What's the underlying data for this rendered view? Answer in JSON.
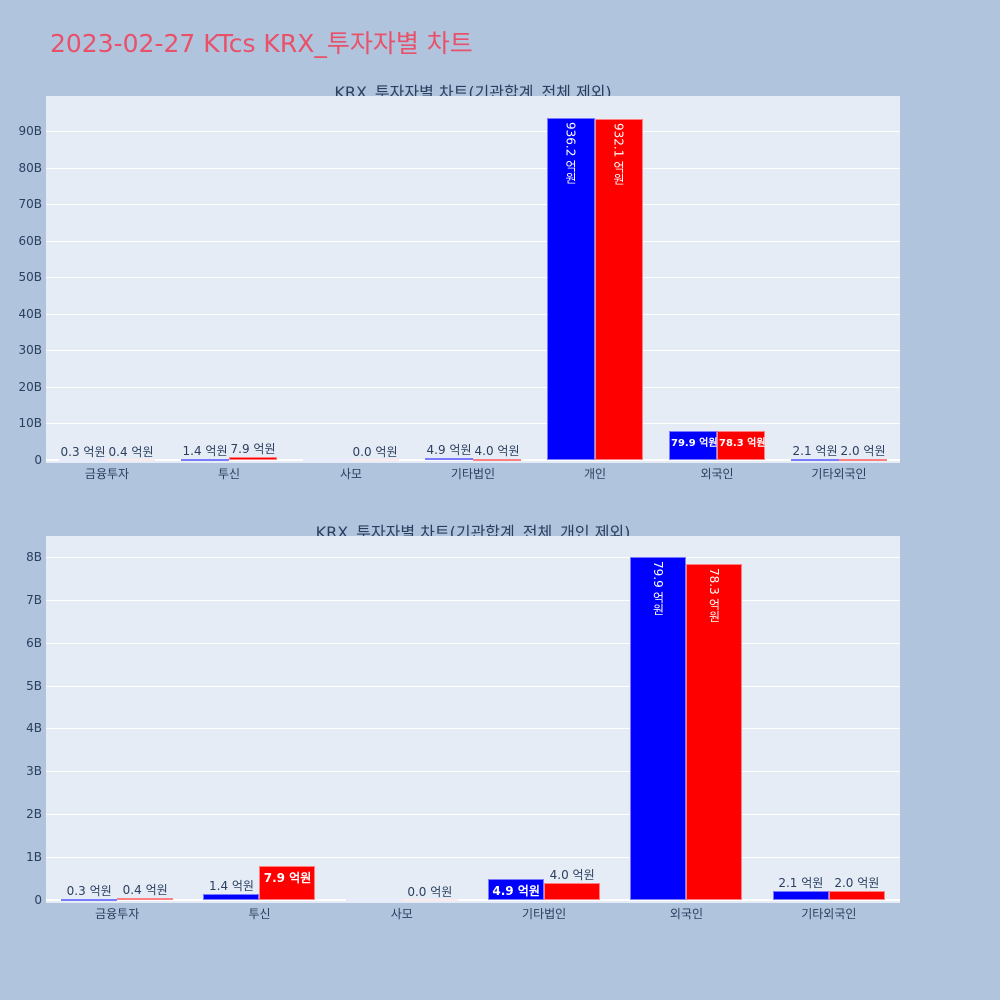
{
  "title": "2023-02-27 KTcs KRX_투자자별 차트",
  "colors": {
    "buy": "#0000ff",
    "sell": "#ff0000",
    "title": "#e8516a",
    "background": "#b0c4de",
    "plot_bg": "#e5ecf6"
  },
  "chart_data": [
    {
      "type": "bar",
      "title": "KRX_투자자별 차트(기관합계_전체 제외)",
      "xlabel": "",
      "ylabel": "",
      "ylim": [
        0,
        99
      ],
      "yticks": [
        "0",
        "10B",
        "20B",
        "30B",
        "40B",
        "50B",
        "60B",
        "70B",
        "80B",
        "90B"
      ],
      "grid": true,
      "legend": "none",
      "categories": [
        "금융투자",
        "투신",
        "사모",
        "기타법인",
        "개인",
        "외국인",
        "기타외국인"
      ],
      "series": [
        {
          "name": "buy",
          "color": "#0000ff",
          "values_억원": [
            0.3,
            1.4,
            0.0,
            4.9,
            936.2,
            79.9,
            2.1
          ],
          "labels": [
            "0.3 억원",
            "1.4 억원",
            "",
            "4.9 억원",
            "936.2 억원",
            "79.9 억원",
            "2.1 억원"
          ]
        },
        {
          "name": "sell",
          "color": "#ff0000",
          "values_억원": [
            0.4,
            7.9,
            0.0,
            4.0,
            932.1,
            78.3,
            2.0
          ],
          "labels": [
            "0.4 억원",
            "7.9 억원",
            "0.0 억원",
            "4.0 억원",
            "932.1 억원",
            "78.3 억원",
            "2.0 억원"
          ]
        }
      ]
    },
    {
      "type": "bar",
      "title": "KRX_투자자별 차트(기관합계_전체_개인 제외)",
      "xlabel": "",
      "ylabel": "",
      "ylim": [
        0,
        8.4
      ],
      "yticks": [
        "0",
        "1B",
        "2B",
        "3B",
        "4B",
        "5B",
        "6B",
        "7B",
        "8B"
      ],
      "grid": true,
      "legend": "none",
      "categories": [
        "금융투자",
        "투신",
        "사모",
        "기타법인",
        "외국인",
        "기타외국인"
      ],
      "series": [
        {
          "name": "buy",
          "color": "#0000ff",
          "values_억원": [
            0.3,
            1.4,
            0.0,
            4.9,
            79.9,
            2.1
          ],
          "labels": [
            "0.3 억원",
            "1.4 억원",
            "",
            "4.9 억원",
            "79.9 억원",
            "2.1 억원"
          ]
        },
        {
          "name": "sell",
          "color": "#ff0000",
          "values_억원": [
            0.4,
            7.9,
            0.0,
            4.0,
            78.3,
            2.0
          ],
          "labels": [
            "0.4 억원",
            "7.9 억원",
            "0.0 억원",
            "4.0 억원",
            "78.3 억원",
            "2.0 억원"
          ]
        }
      ]
    }
  ]
}
